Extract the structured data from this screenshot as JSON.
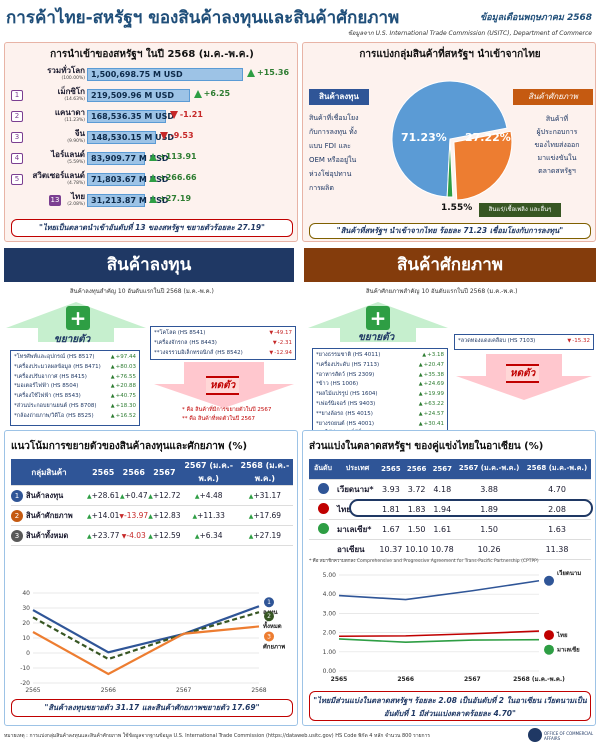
{
  "header": {
    "title": "การค้าไทย-สหรัฐฯ ของสินค้าลงทุนและสินค้าศักยภาพ",
    "date": "ข้อมูลเดือนพฤษภาคม 2568",
    "source": "ข้อมูลจาก U.S. International Trade Commission (USITC), Department of Commerce"
  },
  "imports_panel": {
    "title": "การนำเข้าของสหรัฐฯ ในปี 2568 (ม.ค.-พ.ค.)",
    "quote": "\"ไทยเป็นตลาดนำเข้าอันดับที่ 13 ของสหรัฐฯ ขยายตัวร้อยละ 27.19\"",
    "rows": [
      {
        "rank": "",
        "name": "รวมทั่วโลก",
        "pct": "(100.00%)",
        "value_label": "1,500,698.75 M USD",
        "value": 1500698.75,
        "change_label": "+15.36",
        "dir": "up"
      },
      {
        "rank": "1",
        "name": "เม็กซิโก",
        "pct": "(14.63%)",
        "value_label": "219,509.96 M USD",
        "value": 219509.96,
        "change_label": "+6.25",
        "dir": "up"
      },
      {
        "rank": "2",
        "name": "แคนาดา",
        "pct": "(11.23%)",
        "value_label": "168,536.35 M USD",
        "value": 168536.35,
        "change_label": "-1.21",
        "dir": "down"
      },
      {
        "rank": "3",
        "name": "จีน",
        "pct": "(9.90%)",
        "value_label": "148,530.15 M USD",
        "value": 148530.15,
        "change_label": "-9.53",
        "dir": "down"
      },
      {
        "rank": "4",
        "name": "ไอร์แลนด์",
        "pct": "(5.59%)",
        "value_label": "83,909.77 M USD",
        "value": 83909.77,
        "change_label": "+113.91",
        "dir": "up"
      },
      {
        "rank": "5",
        "name": "สวิตเซอร์แลนด์",
        "pct": "(4.78%)",
        "value_label": "71,803.67 M USD",
        "value": 71803.67,
        "change_label": "+266.66",
        "dir": "up"
      },
      {
        "rank": "13",
        "name": "ไทย",
        "pct": "(2.08%)",
        "value_label": "31,213.87 M USD",
        "value": 31213.87,
        "change_label": "+27.19",
        "dir": "up"
      }
    ]
  },
  "share_panel": {
    "title": "การแบ่งกลุ่มสินค้าที่สหรัฐฯ นำเข้าจากไทย",
    "invest_label": "สินค้าลงทุน",
    "invest_desc": [
      "สินค้าที่เชื่อมโยง",
      "กับการลงทุน ทั้ง",
      "แบบ FDI และ",
      "OEM หรืออยู่ใน",
      "ห่วงโซ่อุปทาน",
      "การผลิต"
    ],
    "potential_label": "สินค้าศักยภาพ",
    "potential_desc": [
      "สินค้าที่",
      "ผู้ประกอบการ",
      "ของไทยส่งออก",
      "มาแข่งขันใน",
      "ตลาดสหรัฐฯ"
    ],
    "energy_label": "สินแร่/เชื้อเพลิง และอื่นๆ",
    "pct_invest": "71.23%",
    "pct_potential": "27.22%",
    "pct_energy": "1.55%",
    "quote": "\"สินค้าที่สหรัฐฯ นำเข้าจากไทย ร้อยละ 71.23 เชื่อมโยงกับการลงทุน\""
  },
  "invest_section": {
    "band": "สินค้าลงทุน",
    "sub": "สินค้าลงทุนสำคัญ 10 อันดับแรกในปี 2568 (ม.ค.-พ.ค.)",
    "expand_label": "ขยายตัว",
    "shrink_label": "หดตัว",
    "expand_items": [
      {
        "name": "*โทรศัพท์และอุปกรณ์ (HS 8517)",
        "chg": "+97.44"
      },
      {
        "name": "*เครื่องประมวลผลข้อมูล (HS 8471)",
        "chg": "+80.03"
      },
      {
        "name": "*เครื่องปรับอากาศ (HS 8415)",
        "chg": "+76.55"
      },
      {
        "name": "*มอเตอร์ไฟฟ้า (HS 8504)",
        "chg": "+20.88"
      },
      {
        "name": "*เครื่องใช้ไฟฟ้า (HS 8543)",
        "chg": "+40.75"
      },
      {
        "name": "*ส่วนประกอบยานยนต์ (HS 8708)",
        "chg": "+18.30"
      },
      {
        "name": "*กล้องถ่ายภาพ/วิดีโอ (HS 8525)",
        "chg": "+16.52"
      }
    ],
    "shrink_items": [
      {
        "name": "**โคโลด (HS 8541)",
        "chg": "-49.17"
      },
      {
        "name": "*เครื่องจักรกล (HS 8443)",
        "chg": "-2.31"
      },
      {
        "name": "**วงจรรวมอิเล็กทรอนิกส์ (HS 8542)",
        "chg": "-12.94"
      }
    ],
    "note1": "* คือ สินค้าที่มีการขยายตัวในปี 2567",
    "note2": "** คือ สินค้าที่หดตัวในปี 2567"
  },
  "potential_section": {
    "band": "สินค้าศักยภาพ",
    "sub": "สินค้าศักยภาพสำคัญ 10 อันดับแรกในปี 2568 (ม.ค.-พ.ค.)",
    "expand_label": "ขยายตัว",
    "shrink_label": "หดตัว",
    "expand_items": [
      {
        "name": "*ยางธรรมชาติ (HS 4011)",
        "chg": "+3.18"
      },
      {
        "name": "*เครื่องประดับ (HS 7113)",
        "chg": "+20.47"
      },
      {
        "name": "*อาหารสัตว์ (HS 2309)",
        "chg": "+35.38"
      },
      {
        "name": "*ข้าว (HS 1006)",
        "chg": "+24.69"
      },
      {
        "name": "*ผลไม้แปรรูป (HS 1604)",
        "chg": "+19.99"
      },
      {
        "name": "*เฟอร์นิเจอร์ (HS 9403)",
        "chg": "+63.22"
      },
      {
        "name": "**ยางล้อรถ (HS 4015)",
        "chg": "+24.57"
      },
      {
        "name": "*ยางรถยนต์ (HS 4001)",
        "chg": "+30.41"
      },
      {
        "name": "*ผลไม้ปรุงแต่งที่มีอื่นๆ (HS 2008)",
        "chg": "+33.98"
      }
    ],
    "shrink_items": [
      {
        "name": "*ลวดทองแดงเคลือบ (HS 7103)",
        "chg": "-15.32"
      }
    ]
  },
  "trend_panel": {
    "title": "แนวโน้มการขยายตัวของสินค้าลงทุนและศักยภาพ (%)",
    "headers": [
      "กลุ่มสินค้า",
      "2565",
      "2566",
      "2567",
      "2567 (ม.ค.-พ.ค.)",
      "2568 (ม.ค.-พ.ค.)"
    ],
    "rows": [
      {
        "num": "1",
        "name": "สินค้าลงทุน",
        "vals": [
          "+28.61",
          "+0.47",
          "+12.72",
          "+4.48",
          "+31.17"
        ],
        "dirs": [
          "up",
          "up",
          "up",
          "up",
          "up"
        ]
      },
      {
        "num": "2",
        "name": "สินค้าศักยภาพ",
        "vals": [
          "+14.01",
          "-13.97",
          "+12.83",
          "+11.33",
          "+17.69"
        ],
        "dirs": [
          "up",
          "down",
          "up",
          "up",
          "up"
        ]
      },
      {
        "num": "3",
        "name": "สินค้าทั้งหมด",
        "vals": [
          "+23.77",
          "-4.03",
          "+12.59",
          "+6.34",
          "+27.19"
        ],
        "dirs": [
          "up",
          "down",
          "up",
          "up",
          "up"
        ]
      }
    ],
    "legend": [
      "ลงทุน",
      "ทั้งหมด",
      "ศักยภาพ"
    ],
    "quote": "\"สินค้าลงทุนขยายตัว 31.17 และสินค้าศักยภาพขยายตัว 17.69\""
  },
  "asean_panel": {
    "title": "ส่วนแบ่งในตลาดสหรัฐฯ ของคู่แข่งไทยในอาเซียน (%)",
    "headers": [
      "อันดับ",
      "ประเทศ",
      "2565",
      "2566",
      "2567",
      "2567 (ม.ค.-พ.ค.)",
      "2568 (ม.ค.-พ.ค.)"
    ],
    "rows": [
      {
        "rank": "",
        "name": "เวียดนาม*",
        "vals": [
          "3.93",
          "3.72",
          "4.18",
          "3.88",
          "4.70"
        ]
      },
      {
        "rank": "",
        "name": "ไทย",
        "vals": [
          "1.81",
          "1.83",
          "1.94",
          "1.89",
          "2.08"
        ]
      },
      {
        "rank": "",
        "name": "มาเลเซีย*",
        "vals": [
          "1.67",
          "1.50",
          "1.61",
          "1.50",
          "1.63"
        ]
      },
      {
        "rank": "",
        "name": "อาเซียน",
        "vals": [
          "10.37",
          "10.10",
          "10.78",
          "10.26",
          "11.38"
        ]
      }
    ],
    "footnote": "* คือ สมาชิกความตกลง Comprehensive and Progressive Agreement for Trans-Pacific Partnership (CPTPP)",
    "legend": [
      "เวียดนาม",
      "ไทย",
      "มาเลเซีย"
    ],
    "quote": "\"ไทยมีส่วนแบ่งในตลาดสหรัฐฯ ร้อยละ 2.08 เป็นอันดับที่ 2 ในอาเซียน เวียดนามเป็นอันดับที่ 1 มีส่วนแบ่งตลาดร้อยละ 4.70\""
  },
  "footer": {
    "note": "หมายเหตุ : การแบ่งกลุ่มสินค้าลงทุนและสินค้าศักยภาพ ใช้ข้อมูลจากฐานข้อมูล U.S. International Trade Commission (https://dataweb.usitc.gov) HS Code พิกัด 4 หลัก จำนวน 800 รายการ",
    "org": "OFFICE OF COMMERCIAL AFFAIRS"
  },
  "chart_data": [
    {
      "type": "pie",
      "title": "การแบ่งกลุ่มสินค้าที่สหรัฐฯ นำเข้าจากไทย",
      "categories": [
        "สินค้าลงทุน",
        "สินค้าศักยภาพ",
        "สินแร่/เชื้อเพลิง และอื่นๆ"
      ],
      "values": [
        71.23,
        27.22,
        1.55
      ],
      "colors": [
        "#5b9bd5",
        "#ed7d31",
        "#2e9e44"
      ]
    },
    {
      "type": "bar",
      "title": "การนำเข้าของสหรัฐฯ ในปี 2568 (ม.ค.-พ.ค.)",
      "categories": [
        "รวมทั่วโลก",
        "เม็กซิโก",
        "แคนาดา",
        "จีน",
        "ไอร์แลนด์",
        "สวิตเซอร์แลนด์",
        "ไทย"
      ],
      "values": [
        1500698.75,
        219509.96,
        168536.35,
        148530.15,
        83909.77,
        71803.67,
        31213.87
      ]
    },
    {
      "type": "line",
      "x": [
        "2565",
        "2566",
        "2567",
        "2568"
      ],
      "ylim": [
        -20,
        40
      ],
      "yticks": [
        -20,
        -10,
        0,
        10,
        20,
        30,
        40
      ],
      "series": [
        {
          "name": "ลงทุน",
          "values": [
            28.61,
            0.47,
            12.72,
            31.17
          ],
          "color": "#2f5597"
        },
        {
          "name": "ทั้งหมด",
          "values": [
            23.77,
            -4.03,
            12.59,
            27.19
          ],
          "color": "#375623"
        },
        {
          "name": "ศักยภาพ",
          "values": [
            14.01,
            -13.97,
            12.83,
            17.69
          ],
          "color": "#ed7d31"
        }
      ]
    },
    {
      "type": "line",
      "x": [
        "2565",
        "2566",
        "2567",
        "2568 (ม.ค.-พ.ค.)"
      ],
      "ylim": [
        0,
        5
      ],
      "yticks": [
        "0.00",
        "1.00",
        "2.00",
        "3.00",
        "4.00",
        "5.00"
      ],
      "series": [
        {
          "name": "เวียดนาม",
          "values": [
            3.93,
            3.72,
            4.18,
            4.7
          ],
          "color": "#2f5597"
        },
        {
          "name": "ไทย",
          "values": [
            1.81,
            1.83,
            1.94,
            2.08
          ],
          "color": "#c00000"
        },
        {
          "name": "มาเลเซีย",
          "values": [
            1.67,
            1.5,
            1.61,
            1.63
          ],
          "color": "#2e9e44"
        }
      ]
    }
  ]
}
